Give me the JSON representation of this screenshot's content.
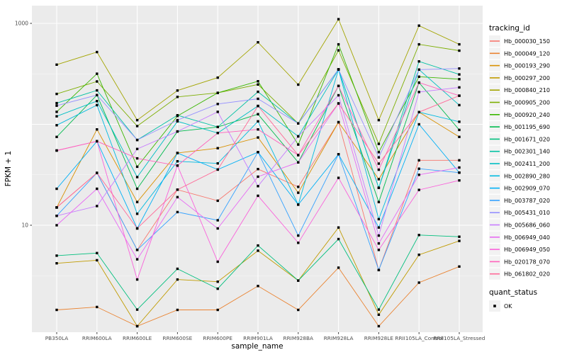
{
  "chart_data": {
    "type": "line",
    "title": "",
    "xlabel": "sample_name",
    "ylabel": "FPKM + 1",
    "y_scale": "log10",
    "y_ticks_shown": [
      "1000",
      "10"
    ],
    "y_tick_values": [
      1000,
      10
    ],
    "y_major_gridlines": [
      1000,
      100,
      10
    ],
    "y_minor_gridlines": [
      316.2,
      31.62,
      3.162
    ],
    "ylim": [
      0.85,
      1500
    ],
    "grid": true,
    "legend_position": "right",
    "point_marker": "black-square",
    "categories": [
      "PB350LA",
      "RRIM600LA",
      "RRIM600LE",
      "RRIM600SE",
      "RRIM600PE",
      "RRIM901LA",
      "RRIM928BA",
      "RRIM928LA",
      "RRIM928LE",
      "RRII105LA_Control",
      "RRII105LA_Stressed"
    ],
    "series": [
      {
        "name": "Hb_000030_150",
        "color": "#F8766D",
        "values": [
          15,
          33,
          5.7,
          22.5,
          17.5,
          36,
          24,
          105,
          3.6,
          44,
          44
        ]
      },
      {
        "name": "Hb_000049_120",
        "color": "#EA8331",
        "values": [
          1.45,
          1.55,
          1.0,
          1.45,
          1.45,
          2.5,
          1.45,
          3.8,
          1.0,
          2.7,
          3.9
        ]
      },
      {
        "name": "Hb_000193_290",
        "color": "#D89000",
        "values": [
          15,
          89,
          17,
          52,
          58,
          74,
          21,
          105,
          28.6,
          132,
          75
        ]
      },
      {
        "name": "Hb_000297_200",
        "color": "#C09B00",
        "values": [
          4.2,
          4.5,
          1.0,
          2.9,
          2.76,
          5.6,
          2.83,
          9.5,
          1.3,
          5.1,
          7.0
        ]
      },
      {
        "name": "Hb_000840_210",
        "color": "#A3A500",
        "values": [
          390,
          520,
          110,
          216,
          290,
          650,
          247,
          1100,
          110,
          950,
          620
        ]
      },
      {
        "name": "Hb_000905_200",
        "color": "#7CAE00",
        "values": [
          200,
          266,
          96,
          187,
          205,
          248,
          102,
          540,
          64,
          620,
          537
        ]
      },
      {
        "name": "Hb_000920_240",
        "color": "#39B600",
        "values": [
          133,
          317,
          38,
          121,
          205,
          267,
          63,
          620,
          53,
          296,
          280
        ]
      },
      {
        "name": "Hb_001195_690",
        "color": "#00BB4E",
        "values": [
          75,
          195,
          23,
          85,
          94,
          126,
          42,
          240,
          17,
          259,
          88
        ]
      },
      {
        "name": "Hb_001671_020",
        "color": "#00BF7D",
        "values": [
          5,
          5.3,
          1.46,
          3.7,
          2.35,
          6.3,
          2.83,
          7.3,
          1.46,
          8.0,
          7.7
        ]
      },
      {
        "name": "Hb_002301_140",
        "color": "#00C1A3",
        "values": [
          162,
          217,
          70,
          123,
          94,
          210,
          102,
          350,
          23.5,
          420,
          312
        ]
      },
      {
        "name": "Hb_002411_200",
        "color": "#00BFC4",
        "values": [
          120,
          170,
          30,
          107,
          82,
          152,
          76,
          350,
          23.5,
          348,
          155
        ]
      },
      {
        "name": "Hb_002890_280",
        "color": "#00BAE0",
        "values": [
          98,
          155,
          13,
          43,
          41,
          107,
          16,
          350,
          11.5,
          132,
          106
        ]
      },
      {
        "name": "Hb_002909_070",
        "color": "#00B0F6",
        "values": [
          23,
          68,
          9.3,
          52,
          35.6,
          53,
          16,
          50.5,
          9.5,
          100,
          33.2
        ]
      },
      {
        "name": "Hb_003787_020",
        "color": "#35A2FF",
        "values": [
          12.4,
          33,
          5.7,
          13.5,
          11.2,
          53,
          7.9,
          50.5,
          3.6,
          36.3,
          33.2
        ]
      },
      {
        "name": "Hb_005431_010",
        "color": "#9590FF",
        "values": [
          153,
          195,
          70,
          110,
          159,
          179,
          102,
          350,
          47,
          348,
          357
        ]
      },
      {
        "name": "Hb_005686_060",
        "color": "#C77CFF",
        "values": [
          12.4,
          15.5,
          57,
          85,
          133,
          24.4,
          76,
          194,
          7.9,
          209,
          232
        ]
      },
      {
        "name": "Hb_006949_040",
        "color": "#E76BF3",
        "values": [
          10,
          23,
          4.6,
          19,
          9.3,
          30.3,
          42,
          161,
          6.6,
          31.6,
          37.3
        ]
      },
      {
        "name": "Hb_006949_050",
        "color": "#FA62DB",
        "values": [
          55,
          68,
          2.9,
          39,
          4.35,
          19.6,
          6.7,
          29.5,
          5.7,
          22.4,
          27.8
        ]
      },
      {
        "name": "Hb_020178_070",
        "color": "#FF62BC",
        "values": [
          55,
          68,
          46,
          39,
          82,
          89,
          49.5,
          240,
          35.5,
          259,
          192
        ]
      },
      {
        "name": "Hb_061802_020",
        "color": "#FF6A98",
        "values": [
          15,
          33,
          9.3,
          22.5,
          35.6,
          152,
          49.5,
          161,
          40.8,
          132,
          192
        ]
      }
    ]
  },
  "legend": {
    "tracking_title": "tracking_id",
    "quant_title": "quant_status",
    "ok_label": "OK"
  },
  "colors": {
    "panel_bg": "#EBEBEB",
    "grid_major": "#FFFFFF",
    "grid_minor": "#F5F5F5",
    "tick_text": "#4D4D4D",
    "tick_mark": "#333333",
    "axis_title": "#000000",
    "legend_key_bg": "#F2F2F2",
    "point": "#000000"
  }
}
